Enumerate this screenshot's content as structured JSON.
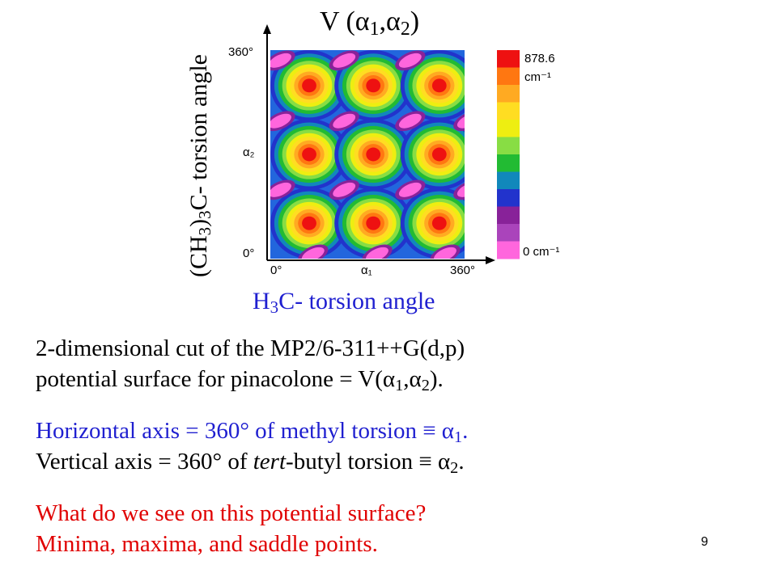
{
  "figure": {
    "title_text": "V (",
    "title_a1": "α",
    "title_sub1": "1",
    "title_comma": ",",
    "title_a2": "α",
    "title_sub2": "2",
    "title_close": ")",
    "y_axis_label_pre": "(CH",
    "y_axis_label_sub1": "3",
    "y_axis_label_mid": ")",
    "y_axis_label_sub2": "3",
    "y_axis_label_post": "C- torsion angle",
    "x_axis_label_pre": "H",
    "x_axis_label_sub": "3",
    "x_axis_label_post": "C- torsion angle",
    "y_tick_top": "360°",
    "y_tick_mid": "α₂",
    "y_tick_bottom": "0°",
    "x_tick_left": "0°",
    "x_tick_mid": "α₁",
    "x_tick_right": "360°",
    "colorbar_max": "878.6",
    "colorbar_max_unit": "cm⁻¹",
    "colorbar_min": "0 cm⁻¹",
    "colorbar_colors": [
      "#ee1111",
      "#ff7711",
      "#ffaa22",
      "#ffdd22",
      "#eeee11",
      "#88dd44",
      "#22bb33",
      "#1188bb",
      "#2233cc",
      "#882299",
      "#aa44bb",
      "#ff66dd"
    ]
  },
  "text": {
    "line1": "2-dimensional cut of the MP2/6-311++G(d,p)",
    "line2_pre": "potential surface for pinacolone = V(",
    "line2_a1": "α",
    "line2_sub1": "1",
    "line2_comma": ",",
    "line2_a2": "α",
    "line2_sub2": "2",
    "line2_post": ").",
    "line3_pre": "Horizontal axis = 360° of methyl torsion ≡ ",
    "line3_a": "α",
    "line3_sub": "1",
    "line3_post": ".",
    "line4_pre": "Vertical axis = 360° of ",
    "line4_italic": "tert",
    "line4_mid": "-butyl torsion ≡ ",
    "line4_a": "α",
    "line4_sub": "2",
    "line4_post": ".",
    "line5": "What do we see on this potential surface?",
    "line6": "Minima, maxima, and saddle points."
  },
  "page_number": "9"
}
